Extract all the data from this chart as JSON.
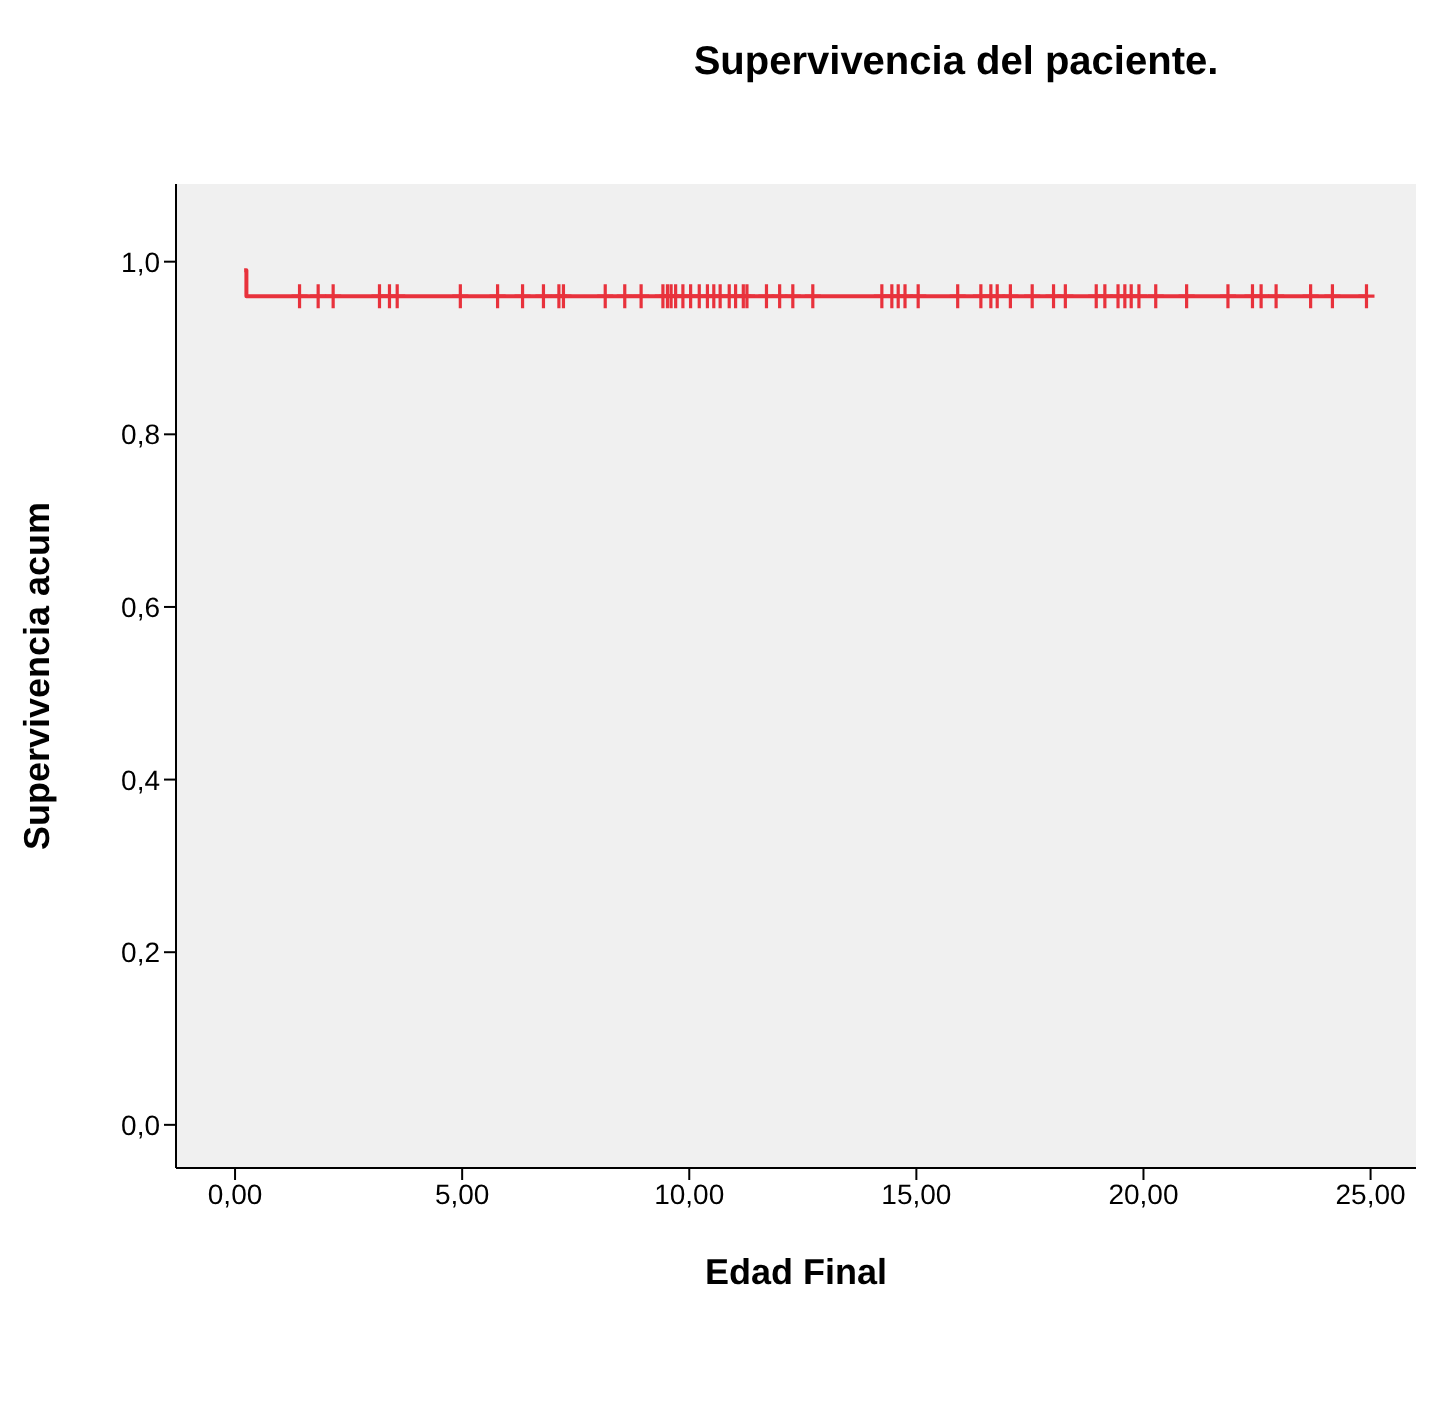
{
  "chart_data": {
    "type": "step",
    "title": "Supervivencia del paciente.",
    "xlabel": "Edad Final",
    "ylabel": "Supervivencia acum",
    "xlim": [
      -1.3,
      26
    ],
    "ylim": [
      -0.05,
      1.09
    ],
    "xticks": [
      {
        "value": 0,
        "label": "0,00"
      },
      {
        "value": 5,
        "label": "5,00"
      },
      {
        "value": 10,
        "label": "10,00"
      },
      {
        "value": 15,
        "label": "15,00"
      },
      {
        "value": 20,
        "label": "20,00"
      },
      {
        "value": 25,
        "label": "25,00"
      }
    ],
    "yticks": [
      {
        "value": 0,
        "label": "0,0"
      },
      {
        "value": 0.2,
        "label": "0,2"
      },
      {
        "value": 0.4,
        "label": "0,4"
      },
      {
        "value": 0.6,
        "label": "0,6"
      },
      {
        "value": 0.8,
        "label": "0,8"
      },
      {
        "value": 1,
        "label": "1,0"
      }
    ],
    "grid": false,
    "series": [
      {
        "color": "#e8323c",
        "x": [
          0.2,
          0.25,
          24.91
        ],
        "values": [
          0.99,
          0.96,
          0.96
        ],
        "marker": "none"
      },
      {
        "type": "scatter",
        "color": "#e8323c",
        "marker": "cross",
        "x": [
          1.42,
          1.83,
          2.16,
          3.18,
          3.4,
          3.57,
          4.96,
          5.78,
          6.33,
          6.79,
          7.13,
          7.23,
          8.15,
          8.58,
          8.94,
          9.42,
          9.52,
          9.6,
          9.7,
          9.86,
          10.03,
          10.22,
          10.4,
          10.54,
          10.68,
          10.88,
          11.02,
          11.19,
          11.27,
          11.7,
          11.99,
          12.28,
          12.72,
          14.24,
          14.46,
          14.6,
          14.75,
          15.04,
          15.91,
          16.42,
          16.64,
          16.78,
          17.07,
          17.55,
          18.02,
          18.28,
          18.96,
          19.15,
          19.44,
          19.59,
          19.73,
          19.9,
          20.27,
          20.95,
          21.86,
          22.4,
          22.59,
          22.92,
          23.68,
          24.16,
          24.91
        ],
        "values": [
          0.96,
          0.96,
          0.96,
          0.96,
          0.96,
          0.96,
          0.96,
          0.96,
          0.96,
          0.96,
          0.96,
          0.96,
          0.96,
          0.96,
          0.96,
          0.96,
          0.96,
          0.96,
          0.96,
          0.96,
          0.96,
          0.96,
          0.96,
          0.96,
          0.96,
          0.96,
          0.96,
          0.96,
          0.96,
          0.96,
          0.96,
          0.96,
          0.96,
          0.96,
          0.96,
          0.96,
          0.96,
          0.96,
          0.96,
          0.96,
          0.96,
          0.96,
          0.96,
          0.96,
          0.96,
          0.96,
          0.96,
          0.96,
          0.96,
          0.96,
          0.96,
          0.96,
          0.96,
          0.96,
          0.96,
          0.96,
          0.96,
          0.96,
          0.96,
          0.96,
          0.96
        ]
      }
    ]
  }
}
